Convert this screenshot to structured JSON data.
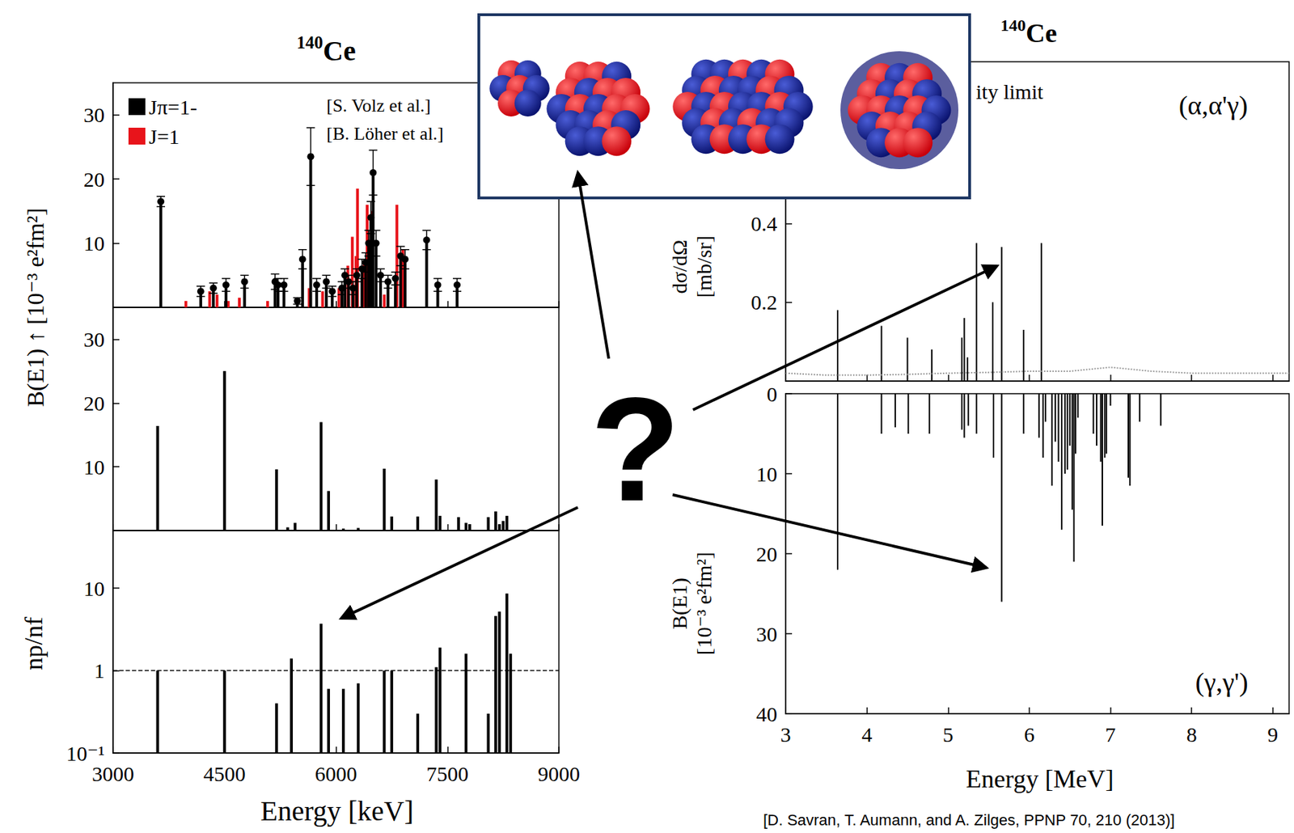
{
  "chart_data": [
    {
      "type": "bar",
      "title": "140Ce",
      "ylabel": "B(E1) ↑ [10⁻³ e²fm²]",
      "xlim": [
        3000,
        9000
      ],
      "xticks": [
        3000,
        4500,
        6000,
        7500,
        9000
      ],
      "ylim": [
        0,
        35
      ],
      "yticks": [
        10,
        20,
        30
      ],
      "tick_labels": "y",
      "legend": "upper left",
      "annotations": [
        "[S. Volz et al.]",
        "[B. Löher et al.]"
      ],
      "series": [
        {
          "name": "Jπ=1-",
          "color": "#000000",
          "marker": "circle",
          "x": [
            3643,
            4180,
            4350,
            4520,
            4770,
            5180,
            5220,
            5300,
            5480,
            5550,
            5660,
            5740,
            5870,
            5950,
            6080,
            6120,
            6170,
            6230,
            6280,
            6350,
            6400,
            6440,
            6470,
            6500,
            6540,
            6600,
            6700,
            6800,
            6870,
            6930,
            7220,
            7370,
            7630
          ],
          "values": [
            16.5,
            2.5,
            3,
            3.5,
            4,
            4,
            3.5,
            3.5,
            1,
            7.5,
            23.5,
            3.5,
            4,
            2.5,
            3,
            5,
            4,
            3,
            5,
            6,
            7,
            10,
            14,
            21,
            10,
            5,
            4,
            4.5,
            8,
            7.5,
            10.5,
            3.5,
            3.5
          ],
          "errors": [
            0.8,
            0.8,
            0.8,
            1,
            1,
            1.2,
            1,
            1,
            0.5,
            1.5,
            4.5,
            1,
            1,
            0.8,
            1,
            1,
            1,
            1,
            1,
            1.5,
            1.5,
            2,
            2.5,
            3.5,
            2,
            1,
            1,
            1,
            1.5,
            1.5,
            1.5,
            1,
            1
          ]
        },
        {
          "name": "J=1",
          "color": "#e8141b",
          "x": [
            3980,
            4300,
            4400,
            4550,
            4700,
            5080,
            5640,
            5820,
            6040,
            6160,
            6220,
            6270,
            6290,
            6380,
            6420,
            6490,
            6650,
            6820,
            6900
          ],
          "values": [
            1,
            2.5,
            2,
            1,
            1.5,
            1,
            3,
            2.5,
            3,
            6.5,
            11,
            8,
            18.5,
            7,
            16,
            15,
            2,
            16,
            9
          ]
        }
      ]
    },
    {
      "type": "bar",
      "xlim": [
        3000,
        9000
      ],
      "xticks": [
        3000,
        4500,
        6000,
        7500,
        9000
      ],
      "ylim": [
        0,
        35
      ],
      "yticks": [
        10,
        20,
        30
      ],
      "tick_labels": "y",
      "color": "#000000",
      "x": [
        3600,
        4500,
        5200,
        5350,
        5450,
        5800,
        5900,
        6100,
        6300,
        6650,
        6750,
        7100,
        7350,
        7400,
        7650,
        7750,
        7800,
        8050,
        8150,
        8200,
        8250,
        8300
      ],
      "values": [
        16.4,
        25,
        9.6,
        0.5,
        1.2,
        17,
        6.2,
        0.3,
        0.4,
        9.7,
        2.2,
        2.2,
        8,
        2.3,
        2.1,
        1.2,
        1,
        2.1,
        3,
        1,
        1.5,
        2.3
      ]
    },
    {
      "type": "bar",
      "xlabel": "Energy [keV]",
      "ylabel": "np/nf",
      "log": "y",
      "xlim": [
        3000,
        9000
      ],
      "xticks": [
        3000,
        4500,
        6000,
        7500,
        9000
      ],
      "ylim": [
        0.1,
        50
      ],
      "yticks": [
        {
          "value": 0.1,
          "label": "10⁻¹"
        },
        1,
        10
      ],
      "color": "#000000",
      "reference_line": {
        "value": 1,
        "line_style": "dashed"
      },
      "x": [
        3600,
        4500,
        5200,
        5400,
        5800,
        5900,
        6100,
        6300,
        6650,
        6750,
        7100,
        7350,
        7400,
        7750,
        8050,
        8150,
        8200,
        8300,
        8350
      ],
      "values": [
        1,
        1,
        0.4,
        1.4,
        3.7,
        0.6,
        0.6,
        0.7,
        1,
        1,
        0.3,
        1.1,
        1.9,
        1.6,
        0.3,
        4.6,
        5.2,
        8.6,
        1.6
      ]
    },
    {
      "type": "bar",
      "title": "140Ce",
      "ylabel": "dσ/dΩ [mb/sr]",
      "annotations": [
        "ity limit",
        "(α,α'γ)"
      ],
      "xlim": [
        3,
        9.2
      ],
      "xticks": [
        3,
        4,
        5,
        6,
        7,
        8,
        9
      ],
      "ylim": [
        0,
        0.81
      ],
      "yticks": [
        0.2,
        0.4
      ],
      "tick_labels": "y",
      "color": "#000000",
      "x": [
        3.64,
        4.18,
        4.5,
        4.8,
        5.17,
        5.2,
        5.24,
        5.35,
        5.55,
        5.66,
        5.93,
        6.15
      ],
      "values": [
        0.18,
        0.14,
        0.11,
        0.08,
        0.11,
        0.16,
        0.06,
        0.35,
        0.2,
        0.34,
        0.13,
        0.35
      ],
      "sensitivity_limit": {
        "color": "#999999",
        "line_style": "dotted",
        "x": [
          3,
          3.5,
          4,
          4.5,
          5,
          5.5,
          6,
          6.5,
          7,
          7.5,
          8,
          8.5,
          9,
          9.2
        ],
        "values": [
          0.02,
          0.015,
          0.015,
          0.017,
          0.02,
          0.022,
          0.025,
          0.025,
          0.035,
          0.025,
          0.02,
          0.02,
          0.02,
          0.02
        ]
      }
    },
    {
      "type": "bar",
      "xlabel": "Energy [MeV]",
      "ylabel": "B(E1) [10⁻³ e²fm²]",
      "annotations": [
        "(γ,γ')"
      ],
      "xlim": [
        3,
        9.2
      ],
      "xticks": [
        3,
        4,
        5,
        6,
        7,
        8,
        9
      ],
      "ylim": [
        40,
        0
      ],
      "yticks": [
        0,
        10,
        20,
        30,
        40
      ],
      "color": "#000000",
      "x": [
        3.64,
        4.18,
        4.35,
        4.51,
        4.77,
        5.17,
        5.2,
        5.25,
        5.35,
        5.56,
        5.66,
        5.93,
        6.12,
        6.17,
        6.2,
        6.28,
        6.32,
        6.36,
        6.4,
        6.44,
        6.47,
        6.5,
        6.53,
        6.55,
        6.57,
        6.6,
        6.79,
        6.83,
        6.88,
        6.9,
        6.93,
        6.95,
        7.0,
        7.22,
        7.24,
        7.36,
        7.62
      ],
      "values": [
        22,
        5,
        4.2,
        5,
        5,
        4.5,
        5.5,
        4,
        5,
        8,
        26,
        5,
        5.5,
        8,
        3.5,
        11.5,
        6,
        8.5,
        17,
        10,
        9.5,
        6.5,
        14.5,
        21,
        7.5,
        3,
        5,
        6.5,
        8.5,
        16.5,
        8,
        7.5,
        1.5,
        10.5,
        11.5,
        3.5,
        4
      ]
    }
  ],
  "annotations": [
    "?",
    "[D. Savran, T. Aumann, and A. Zilges, PPNP 70, 210 (2013)]"
  ]
}
